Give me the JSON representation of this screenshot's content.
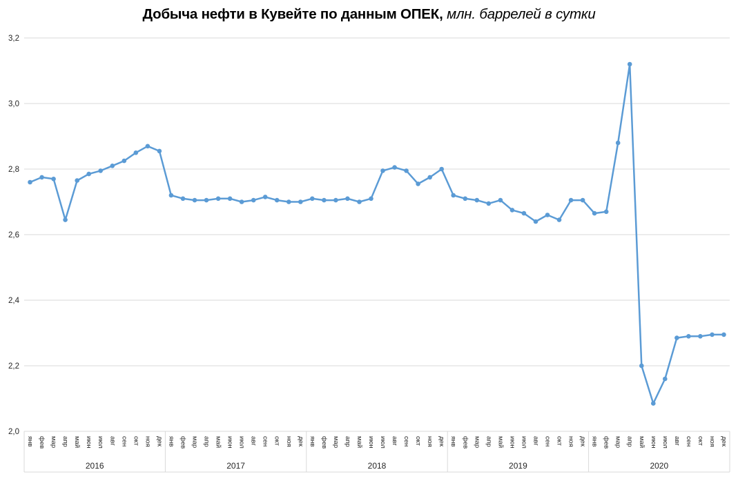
{
  "title": {
    "main": "Добыча нефти в Кувейте по данным ОПЕК,",
    "subtitle": " млн. баррелей в сутки"
  },
  "chart_data": {
    "type": "line",
    "title": "Добыча нефти в Кувейте по данным ОПЕК, млн. баррелей в сутки",
    "ylabel": "млн. баррелей в сутки",
    "ylim": [
      2.0,
      3.2
    ],
    "ytick_step": 0.2,
    "ytick_labels_top_to_bottom": [
      "3,2",
      "3,0",
      "2,8",
      "2,6",
      "2,4",
      "2,2",
      "2,0"
    ],
    "grid": true,
    "legend": false,
    "line_color": "#5B9BD5",
    "grid_color": "#D9D9D9",
    "text_color": "#262626",
    "months": [
      "янв",
      "фев",
      "мар",
      "апр",
      "май",
      "июн",
      "июл",
      "авг",
      "сен",
      "окт",
      "ноя",
      "дек"
    ],
    "years": [
      "2016",
      "2017",
      "2018",
      "2019",
      "2020"
    ],
    "values": [
      2.76,
      2.775,
      2.77,
      2.645,
      2.765,
      2.785,
      2.795,
      2.81,
      2.825,
      2.85,
      2.87,
      2.855,
      2.72,
      2.71,
      2.705,
      2.705,
      2.71,
      2.71,
      2.7,
      2.705,
      2.715,
      2.705,
      2.7,
      2.7,
      2.71,
      2.705,
      2.705,
      2.71,
      2.7,
      2.71,
      2.795,
      2.805,
      2.795,
      2.755,
      2.775,
      2.8,
      2.72,
      2.71,
      2.705,
      2.695,
      2.705,
      2.675,
      2.665,
      2.64,
      2.66,
      2.645,
      2.705,
      2.705,
      2.665,
      2.67,
      2.88,
      3.12,
      2.2,
      2.085,
      2.16,
      2.285,
      2.29,
      2.29,
      2.295,
      2.295
    ]
  }
}
